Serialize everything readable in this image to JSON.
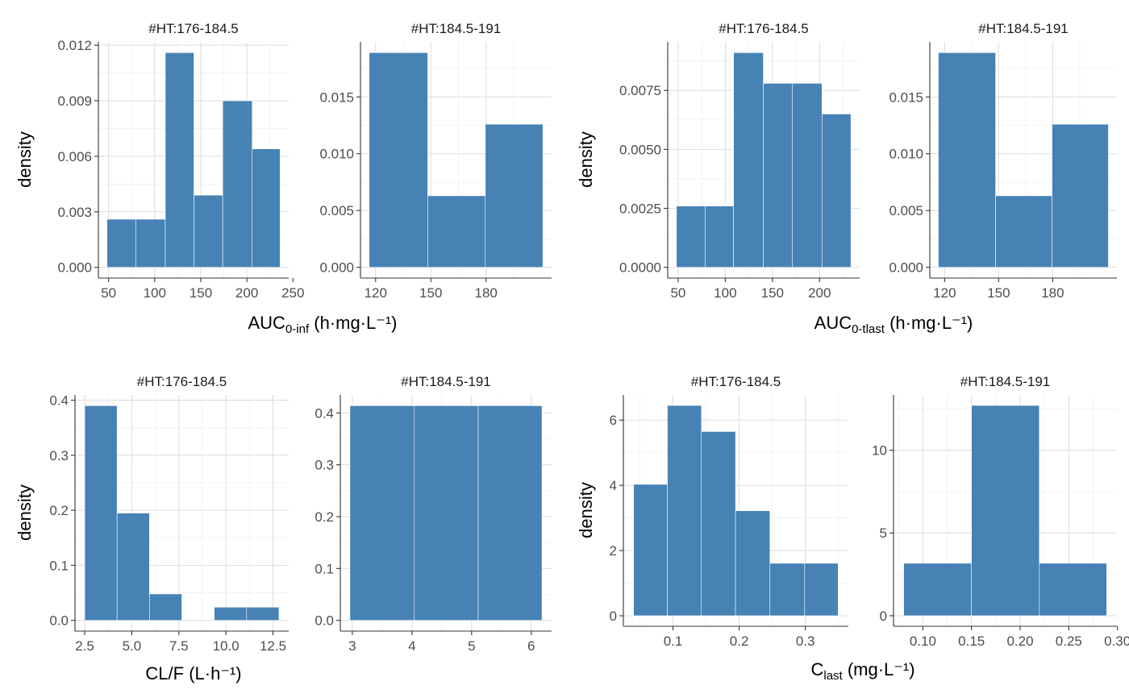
{
  "chart_data": [
    {
      "type": "bar",
      "ylabel": "density",
      "xlabel": {
        "main": "AUC",
        "sub": "0-inf",
        "unit": " (h·mg·L⁻¹)"
      },
      "fill": "#4682b4",
      "panels": [
        {
          "facet": "#HT:176-184.5",
          "bin_edges": [
            48.3,
            79.4,
            111.5,
            142.6,
            173.8,
            205.8,
            236.0
          ],
          "values": [
            0.0026,
            0.0026,
            0.0116,
            0.0039,
            0.009,
            0.0064
          ],
          "xticks": [
            50,
            100,
            150,
            200,
            250
          ],
          "xtick_labels": [
            "50",
            "100",
            "150",
            "200",
            "250"
          ],
          "yticks": [
            0,
            0.003,
            0.006,
            0.009,
            0.012
          ],
          "ytick_labels": [
            "0.000",
            "0.003",
            "0.006",
            "0.009",
            "0.012"
          ]
        },
        {
          "facet": "#HT:184.5-191",
          "bin_edges": [
            116.5,
            148.3,
            179.6,
            210.9
          ],
          "values": [
            0.0189,
            0.0063,
            0.0126
          ],
          "xticks": [
            120,
            150,
            180
          ],
          "xtick_labels": [
            "120",
            "150",
            "180"
          ],
          "yticks": [
            0,
            0.005,
            0.01,
            0.015
          ],
          "ytick_labels": [
            "0.000",
            "0.005",
            "0.010",
            "0.015"
          ]
        }
      ]
    },
    {
      "type": "bar",
      "ylabel": "density",
      "xlabel": {
        "main": "AUC",
        "sub": "0-tlast",
        "unit": " (h·mg·L⁻¹)"
      },
      "fill": "#4682b4",
      "panels": [
        {
          "facet": "#HT:176-184.5",
          "bin_edges": [
            48.2,
            78.9,
            108.8,
            140.4,
            171.0,
            202.6,
            233.3
          ],
          "values": [
            0.0026,
            0.0026,
            0.0091,
            0.0078,
            0.0078,
            0.0065
          ],
          "xticks": [
            50,
            100,
            150,
            200
          ],
          "xtick_labels": [
            "50",
            "100",
            "150",
            "200"
          ],
          "yticks": [
            0,
            0.0025,
            0.005,
            0.0075
          ],
          "ytick_labels": [
            "0.0000",
            "0.0025",
            "0.0050",
            "0.0075"
          ]
        },
        {
          "facet": "#HT:184.5-191",
          "bin_edges": [
            116.5,
            148.3,
            179.6,
            210.9
          ],
          "values": [
            0.0189,
            0.0063,
            0.0126
          ],
          "xticks": [
            120,
            150,
            180
          ],
          "xtick_labels": [
            "120",
            "150",
            "180"
          ],
          "yticks": [
            0,
            0.005,
            0.01,
            0.015
          ],
          "ytick_labels": [
            "0.000",
            "0.005",
            "0.010",
            "0.015"
          ]
        }
      ]
    },
    {
      "type": "bar",
      "ylabel": "density",
      "xlabel": {
        "main": "CL/F (L·h⁻¹)",
        "sub": "",
        "unit": ""
      },
      "fill": "#4682b4",
      "panels": [
        {
          "facet": "#HT:176-184.5",
          "bin_edges": [
            2.5,
            4.22,
            5.94,
            7.66,
            9.38,
            11.1,
            12.82
          ],
          "values": [
            0.39,
            0.195,
            0.048,
            0,
            0.024,
            0.024
          ],
          "xticks": [
            2.5,
            5,
            7.5,
            10,
            12.5
          ],
          "xtick_labels": [
            "2.5",
            "5.0",
            "7.5",
            "10.0",
            "12.5"
          ],
          "yticks": [
            0,
            0.1,
            0.2,
            0.3,
            0.4
          ],
          "ytick_labels": [
            "0.0",
            "0.1",
            "0.2",
            "0.3",
            "0.4"
          ]
        },
        {
          "facet": "#HT:184.5-191",
          "bin_edges": [
            2.96,
            4.04,
            5.11,
            6.18
          ],
          "values": [
            0.414,
            0.414,
            0.414
          ],
          "xticks": [
            3,
            4,
            5,
            6
          ],
          "xtick_labels": [
            "3",
            "4",
            "5",
            "6"
          ],
          "yticks": [
            0,
            0.1,
            0.2,
            0.3,
            0.4
          ],
          "ytick_labels": [
            "0.0",
            "0.1",
            "0.2",
            "0.3",
            "0.4"
          ]
        }
      ]
    },
    {
      "type": "bar",
      "ylabel": "density",
      "xlabel": {
        "main": "C",
        "sub": "last",
        "unit": " (mg·L⁻¹)"
      },
      "fill": "#4682b4",
      "panels": [
        {
          "facet": "#HT:176-184.5",
          "bin_edges": [
            0.0405,
            0.0915,
            0.143,
            0.1945,
            0.2465,
            0.299,
            0.3495
          ],
          "values": [
            4.03,
            6.45,
            5.65,
            3.22,
            1.61,
            1.61
          ],
          "xticks": [
            0.1,
            0.2,
            0.3
          ],
          "xtick_labels": [
            "0.1",
            "0.2",
            "0.3"
          ],
          "yticks": [
            0,
            2,
            4,
            6
          ],
          "ytick_labels": [
            "0",
            "2",
            "4",
            "6"
          ]
        },
        {
          "facet": "#HT:184.5-191",
          "bin_edges": [
            0.0803,
            0.15,
            0.2197,
            0.289
          ],
          "values": [
            3.17,
            12.7,
            3.17
          ],
          "xticks": [
            0.1,
            0.15,
            0.2,
            0.25,
            0.3
          ],
          "xtick_labels": [
            "0.10",
            "0.15",
            "0.20",
            "0.25",
            "0.30"
          ],
          "yticks": [
            0,
            5,
            10
          ],
          "ytick_labels": [
            "0",
            "5",
            "10"
          ]
        }
      ]
    }
  ]
}
